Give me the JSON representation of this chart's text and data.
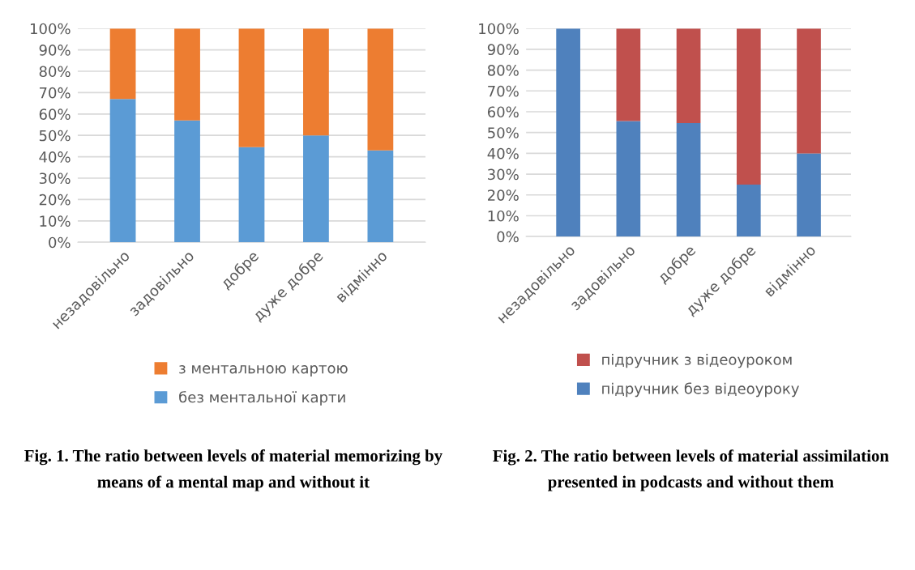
{
  "chart_data": [
    {
      "type": "bar",
      "stacked": true,
      "categories": [
        "незадовільно",
        "задовільно",
        "добре",
        "дуже добре",
        "відмінно"
      ],
      "series": [
        {
          "name": "без ментальної карти",
          "color": "#5b9bd5",
          "values": [
            67,
            57,
            44.5,
            50,
            43
          ]
        },
        {
          "name": "з ментальною картою",
          "color": "#ed7d31",
          "values": [
            33,
            43,
            55.5,
            50,
            57
          ]
        }
      ],
      "ylim": [
        0,
        100
      ],
      "yticks": [
        {
          "value": 0,
          "label": "0%"
        },
        {
          "value": 10,
          "label": "10%"
        },
        {
          "value": 20,
          "label": "20%"
        },
        {
          "value": 30,
          "label": "30%"
        },
        {
          "value": 40,
          "label": "40%"
        },
        {
          "value": 50,
          "label": "50%"
        },
        {
          "value": 60,
          "label": "60%"
        },
        {
          "value": 70,
          "label": "70%"
        },
        {
          "value": 80,
          "label": "80%"
        },
        {
          "value": 90,
          "label": "90%"
        },
        {
          "value": 100,
          "label": "100%"
        }
      ],
      "grid": "y",
      "legend": "bottom",
      "annotations": [
        "Fig. 1. The ratio between levels of material memorizing by means of a mental map and without it"
      ]
    },
    {
      "type": "bar",
      "stacked": true,
      "categories": [
        "незадовільно",
        "задовільно",
        "добре",
        "дуже добре",
        "відмінно"
      ],
      "series": [
        {
          "name": "підручник без відеоуроку",
          "color": "#4f81bd",
          "values": [
            100,
            55.5,
            54.5,
            25,
            40
          ]
        },
        {
          "name": "підручник з відеоуроком",
          "color": "#c0504d",
          "values": [
            0,
            44.5,
            45.5,
            75,
            60
          ]
        }
      ],
      "ylim": [
        0,
        100
      ],
      "yticks": [
        {
          "value": 0,
          "label": "0%"
        },
        {
          "value": 10,
          "label": "10%"
        },
        {
          "value": 20,
          "label": "20%"
        },
        {
          "value": 30,
          "label": "30%"
        },
        {
          "value": 40,
          "label": "40%"
        },
        {
          "value": 50,
          "label": "50%"
        },
        {
          "value": 60,
          "label": "60%"
        },
        {
          "value": 70,
          "label": "70%"
        },
        {
          "value": 80,
          "label": "80%"
        },
        {
          "value": 90,
          "label": "90%"
        },
        {
          "value": 100,
          "label": "100%"
        }
      ],
      "grid": "y",
      "legend": "bottom",
      "annotations": [
        "Fig. 2. The ratio between levels of material assimilation presented in podcasts and without them"
      ]
    }
  ]
}
